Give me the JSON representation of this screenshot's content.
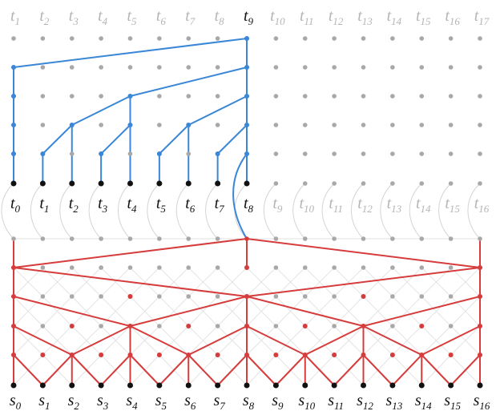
{
  "top_row": {
    "letter": "t",
    "indices": [
      "1",
      "2",
      "3",
      "4",
      "5",
      "6",
      "7",
      "8",
      "9",
      "10",
      "11",
      "12",
      "13",
      "14",
      "15",
      "16",
      "17"
    ]
  },
  "middle_row": {
    "letter": "t",
    "indices": [
      "0",
      "1",
      "2",
      "3",
      "4",
      "5",
      "6",
      "7",
      "8",
      "9",
      "10",
      "11",
      "12",
      "13",
      "14",
      "15",
      "16"
    ]
  },
  "bottom_row": {
    "letter": "s",
    "indices": [
      "0",
      "1",
      "2",
      "3",
      "4",
      "5",
      "6",
      "7",
      "8",
      "9",
      "10",
      "11",
      "12",
      "13",
      "14",
      "15",
      "16"
    ]
  }
}
